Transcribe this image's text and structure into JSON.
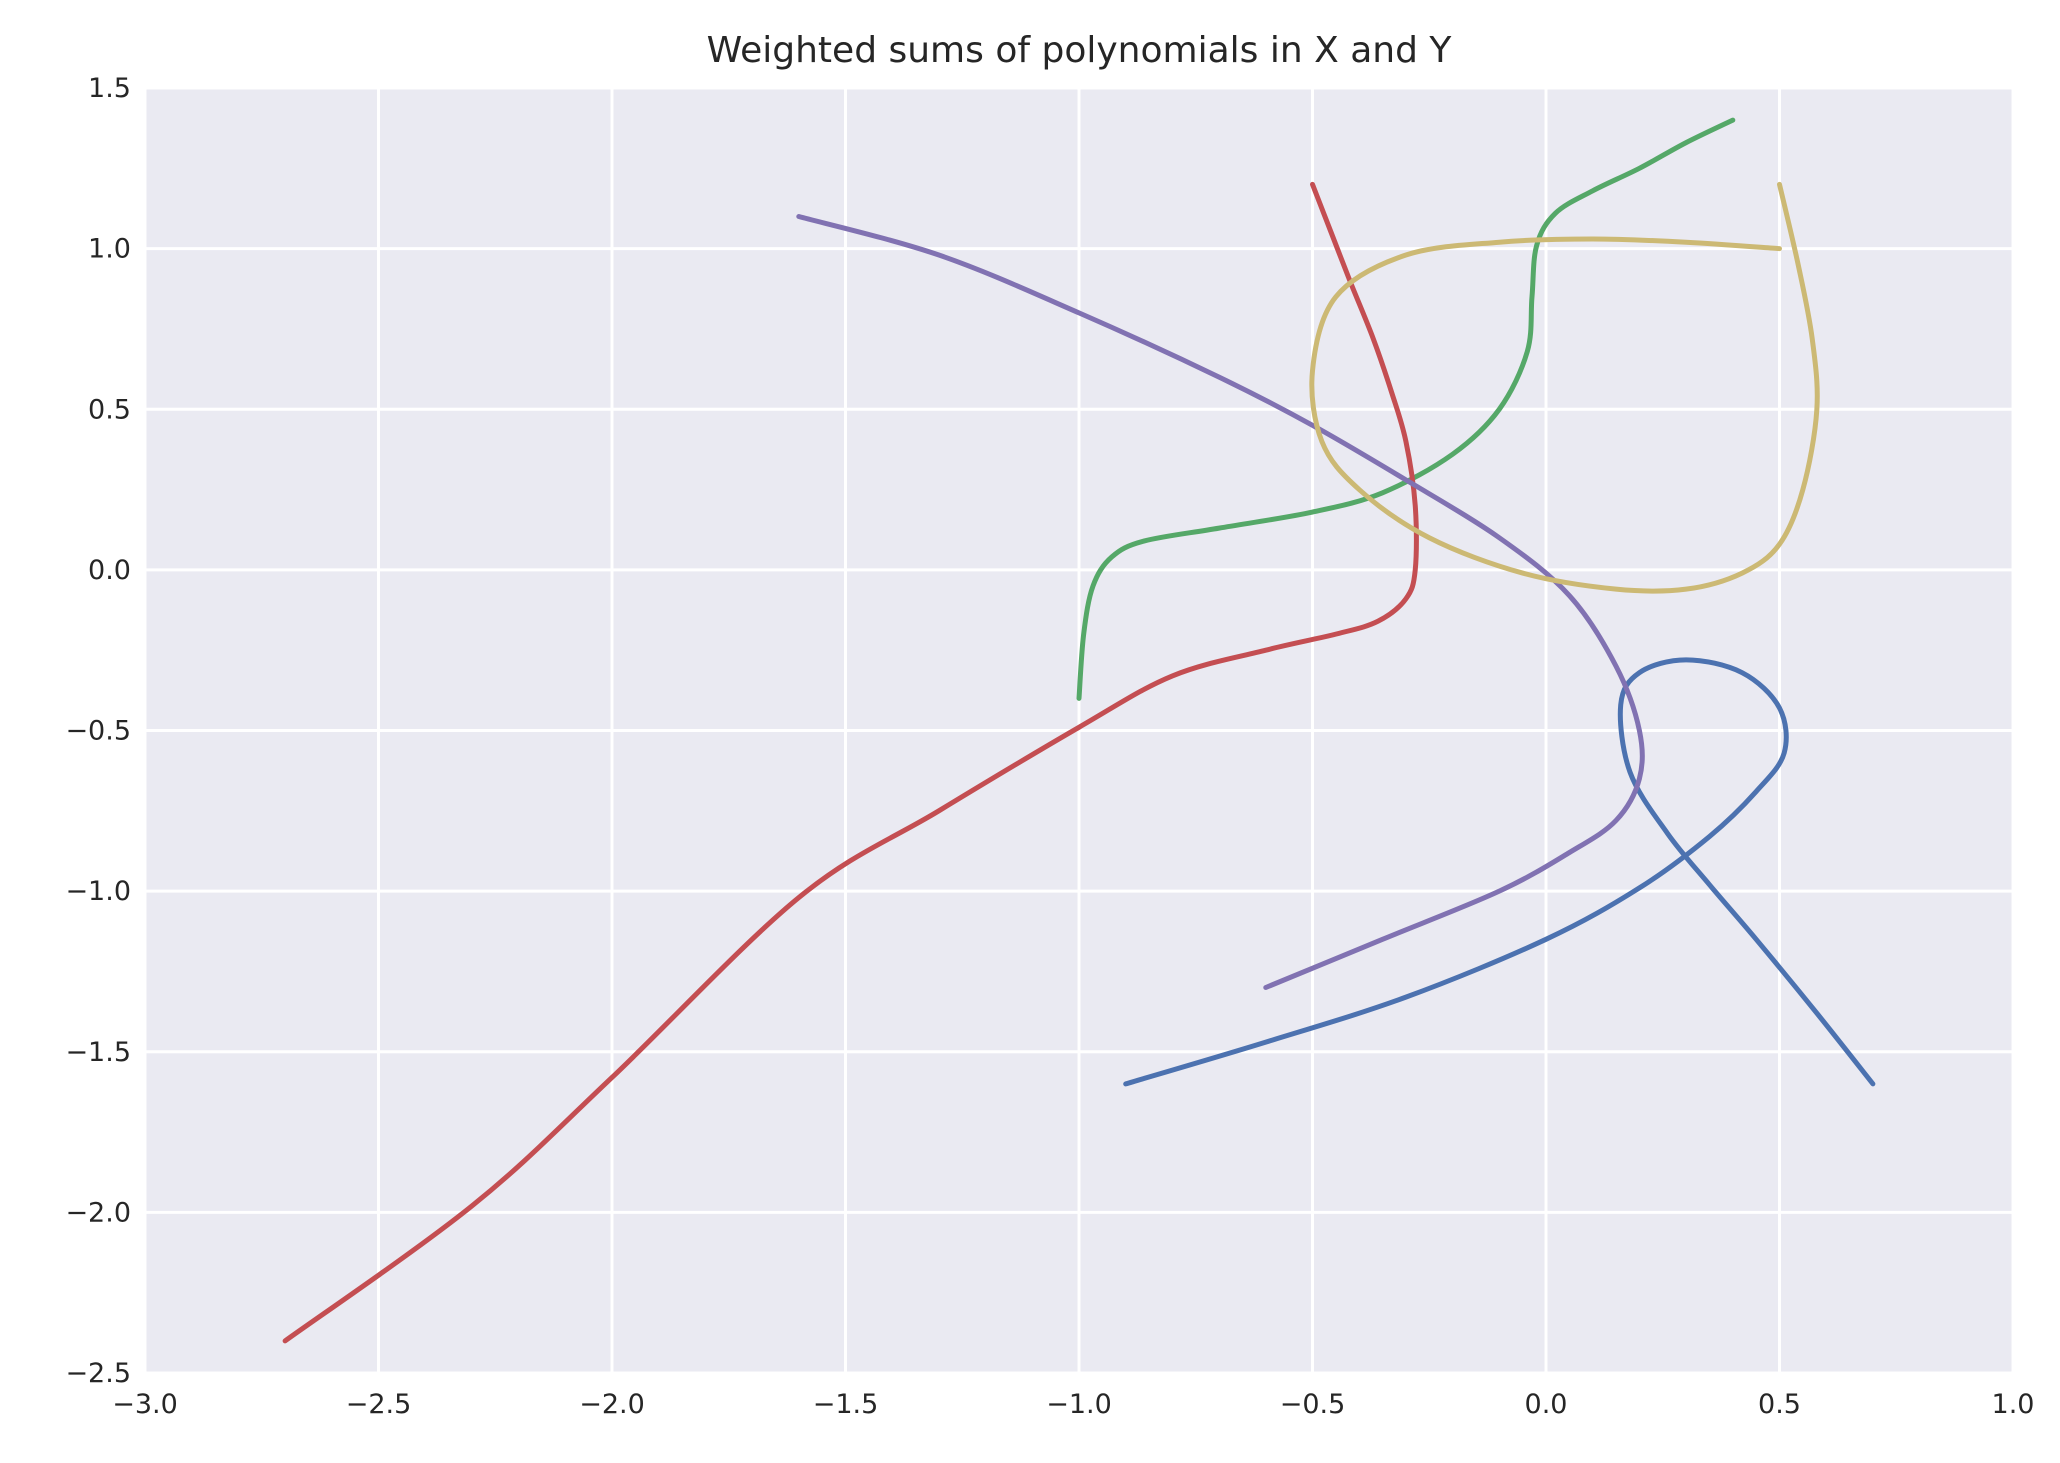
{
  "chart_data": {
    "type": "line",
    "title": "Weighted sums of polynomials in X and Y",
    "xlabel": "",
    "ylabel": "",
    "xlim": [
      -3.0,
      1.0
    ],
    "ylim": [
      -2.5,
      1.5
    ],
    "xticks": [
      -3.0,
      -2.5,
      -2.0,
      -1.5,
      -1.0,
      -0.5,
      0.0,
      0.5,
      1.0
    ],
    "yticks": [
      -2.5,
      -2.0,
      -1.5,
      -1.0,
      -0.5,
      0.0,
      0.5,
      1.0,
      1.5
    ],
    "xtick_labels": [
      "−3.0",
      "−2.5",
      "−2.0",
      "−1.5",
      "−1.0",
      "−0.5",
      "0.0",
      "0.5",
      "1.0"
    ],
    "ytick_labels": [
      "−2.5",
      "−2.0",
      "−1.5",
      "−1.0",
      "−0.5",
      "0.0",
      "0.5",
      "1.0",
      "1.5"
    ],
    "grid": true,
    "background": "#eaeaf2",
    "series": [
      {
        "color": "#4c72b0",
        "x": [
          -0.9,
          -0.6,
          -0.3,
          0.0,
          0.2,
          0.35,
          0.45,
          0.51,
          0.5,
          0.42,
          0.3,
          0.2,
          0.16,
          0.18,
          0.26,
          0.35,
          0.45,
          0.58,
          0.7
        ],
        "y": [
          -1.6,
          -1.47,
          -1.33,
          -1.15,
          -0.99,
          -0.83,
          -0.69,
          -0.57,
          -0.43,
          -0.32,
          -0.28,
          -0.32,
          -0.42,
          -0.63,
          -0.82,
          -0.98,
          -1.15,
          -1.38,
          -1.6
        ]
      },
      {
        "color": "#55a868",
        "x": [
          -1.0,
          -0.99,
          -0.97,
          -0.93,
          -0.86,
          -0.7,
          -0.5,
          -0.35,
          -0.2,
          -0.1,
          -0.04,
          -0.03,
          -0.02,
          0.02,
          0.1,
          0.2,
          0.3,
          0.4
        ],
        "y": [
          -0.4,
          -0.2,
          -0.05,
          0.04,
          0.09,
          0.13,
          0.18,
          0.24,
          0.36,
          0.5,
          0.68,
          0.85,
          1.01,
          1.11,
          1.18,
          1.25,
          1.33,
          1.4
        ]
      },
      {
        "color": "#c44e52",
        "x": [
          -0.5,
          -0.46,
          -0.42,
          -0.37,
          -0.33,
          -0.3,
          -0.28,
          -0.28,
          -0.3,
          -0.36,
          -0.45,
          -0.6,
          -0.8,
          -1.0,
          -1.3,
          -1.6,
          -2.0,
          -2.3,
          -2.7
        ],
        "y": [
          1.2,
          1.05,
          0.9,
          0.72,
          0.55,
          0.4,
          0.2,
          0.0,
          -0.09,
          -0.16,
          -0.2,
          -0.25,
          -0.33,
          -0.49,
          -0.75,
          -1.02,
          -1.58,
          -1.98,
          -2.4
        ],
        "note_endpoints": "visible endpoints"
      },
      {
        "color": "#8172b2",
        "x": [
          -1.6,
          -1.3,
          -1.0,
          -0.7,
          -0.5,
          -0.3,
          -0.1,
          0.05,
          0.15,
          0.2,
          0.2,
          0.15,
          0.05,
          -0.1,
          -0.35,
          -0.6
        ],
        "y": [
          1.1,
          0.98,
          0.8,
          0.6,
          0.45,
          0.28,
          0.1,
          -0.08,
          -0.3,
          -0.5,
          -0.65,
          -0.78,
          -0.88,
          -1.0,
          -1.15,
          -1.3
        ]
      },
      {
        "color": "#ccb974",
        "x": [
          0.5,
          0.3,
          0.1,
          -0.1,
          -0.3,
          -0.45,
          -0.5,
          -0.48,
          -0.4,
          -0.25,
          -0.05,
          0.15,
          0.3,
          0.42,
          0.5,
          0.55,
          0.58,
          0.57,
          0.54,
          0.5
        ],
        "y": [
          1.0,
          1.02,
          1.03,
          1.02,
          0.98,
          0.85,
          0.62,
          0.4,
          0.25,
          0.1,
          -0.01,
          -0.06,
          -0.06,
          -0.01,
          0.08,
          0.25,
          0.5,
          0.72,
          0.95,
          1.2
        ]
      }
    ]
  }
}
